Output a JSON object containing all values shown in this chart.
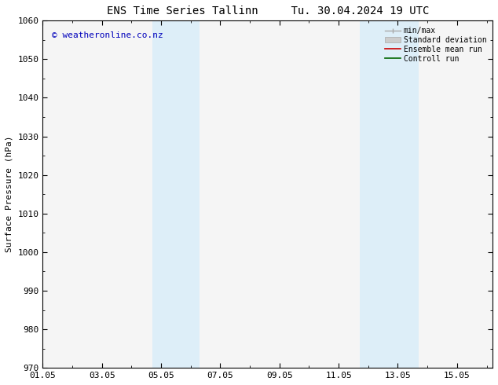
{
  "title": "ENS Time Series Tallinn",
  "title2": "Tu. 30.04.2024 19 UTC",
  "ylabel": "Surface Pressure (hPa)",
  "ylim": [
    970,
    1060
  ],
  "yticks": [
    970,
    980,
    990,
    1000,
    1010,
    1020,
    1030,
    1040,
    1050,
    1060
  ],
  "xlim_start": 0.0,
  "xlim_end": 15.2,
  "xtick_positions": [
    0,
    2,
    4,
    6,
    8,
    10,
    12,
    14
  ],
  "xtick_labels": [
    "01.05",
    "03.05",
    "05.05",
    "07.05",
    "09.05",
    "11.05",
    "13.05",
    "15.05"
  ],
  "shaded_bands": [
    {
      "x_start": 3.7,
      "x_end": 5.3
    },
    {
      "x_start": 10.7,
      "x_end": 12.7
    }
  ],
  "shade_color": "#ddeef8",
  "background_color": "#ffffff",
  "plot_bg_color": "#f5f5f5",
  "watermark_text": "© weatheronline.co.nz",
  "watermark_color": "#0000bb",
  "grid_color": "#cccccc",
  "tick_color": "#000000",
  "title_fontsize": 10,
  "label_fontsize": 8,
  "tick_fontsize": 8
}
